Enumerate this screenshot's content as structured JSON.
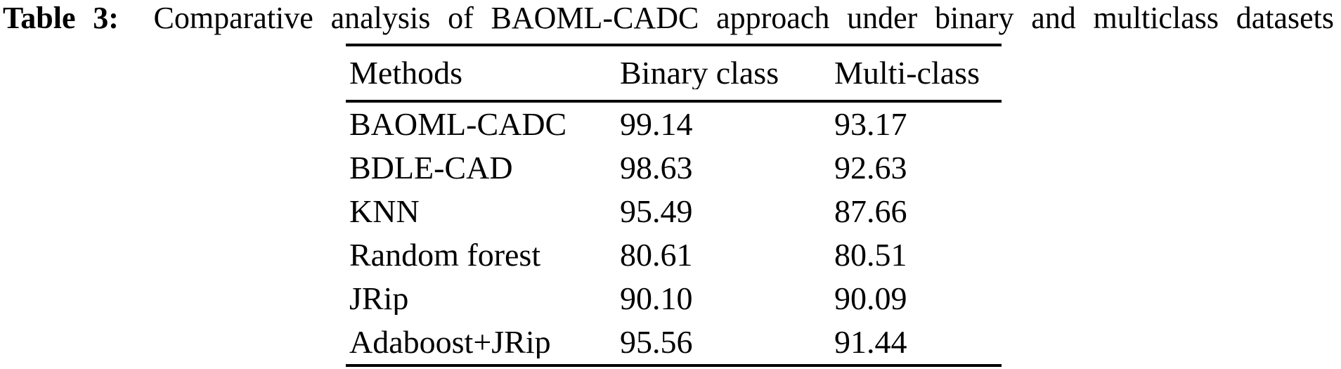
{
  "caption": {
    "label": "Table 3:",
    "text": "Comparative analysis of BAOML-CADC approach under binary and multiclass datasets"
  },
  "table": {
    "columns": {
      "methods": "Methods",
      "binary": "Binary class",
      "multi": "Multi-class"
    },
    "rows": [
      {
        "method": "BAOML-CADC",
        "binary": "99.14",
        "multi": "93.17"
      },
      {
        "method": "BDLE-CAD",
        "binary": "98.63",
        "multi": "92.63"
      },
      {
        "method": "KNN",
        "binary": "95.49",
        "multi": "87.66"
      },
      {
        "method": "Random forest",
        "binary": "80.61",
        "multi": "80.51"
      },
      {
        "method": "JRip",
        "binary": "90.10",
        "multi": "90.09"
      },
      {
        "method": "Adaboost+JRip",
        "binary": "95.56",
        "multi": "91.44"
      }
    ]
  },
  "colors": {
    "text": "#000000",
    "background": "#ffffff",
    "rule": "#000000"
  }
}
